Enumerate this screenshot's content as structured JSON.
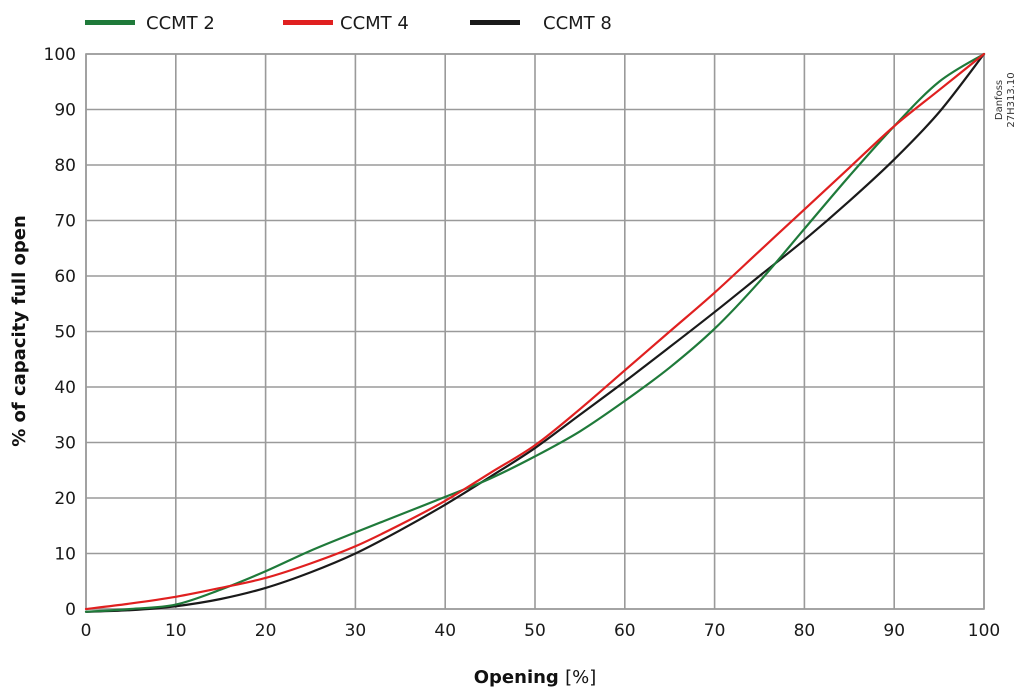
{
  "chart_data": {
    "type": "line",
    "title": "",
    "xlabel": "Opening",
    "xlabel_unit": "[%]",
    "ylabel": "% of capacity full open",
    "xlim": [
      0,
      100
    ],
    "ylim": [
      0,
      100
    ],
    "xticks": [
      "0",
      "10",
      "20",
      "30",
      "40",
      "50",
      "60",
      "70",
      "80",
      "90",
      "100"
    ],
    "yticks": [
      "0",
      "10",
      "20",
      "30",
      "40",
      "50",
      "60",
      "70",
      "80",
      "90",
      "100"
    ],
    "grid": true,
    "legend_position": "top",
    "watermark": [
      "Danfoss",
      "27H313.10"
    ],
    "series": [
      {
        "name": "CCMT 2",
        "color": "#1f7a3a",
        "x": [
          0,
          5,
          10,
          15,
          20,
          25,
          30,
          35,
          40,
          45,
          50,
          55,
          60,
          65,
          70,
          75,
          80,
          85,
          90,
          95,
          100
        ],
        "y": [
          -0.5,
          0,
          0.8,
          3.5,
          6.8,
          10.5,
          13.8,
          17,
          20.2,
          23.5,
          27.5,
          32,
          37.5,
          43.5,
          50.5,
          59,
          68.5,
          78,
          87,
          95,
          100
        ]
      },
      {
        "name": "CCMT 4",
        "color": "#e02020",
        "x": [
          0,
          5,
          10,
          15,
          20,
          25,
          30,
          35,
          40,
          45,
          50,
          55,
          60,
          65,
          70,
          75,
          80,
          85,
          90,
          95,
          100
        ],
        "y": [
          0,
          1,
          2.2,
          3.8,
          5.6,
          8.2,
          11.3,
          15.2,
          19.5,
          24.5,
          29.5,
          36,
          43,
          50,
          57,
          64.5,
          72,
          79.5,
          87,
          93.5,
          100
        ]
      },
      {
        "name": "CCMT 8",
        "color": "#1a1a1a",
        "x": [
          0,
          5,
          10,
          15,
          20,
          25,
          30,
          35,
          40,
          45,
          50,
          55,
          60,
          65,
          70,
          75,
          80,
          85,
          90,
          95,
          100
        ],
        "y": [
          -0.5,
          -0.2,
          0.5,
          1.8,
          3.8,
          6.6,
          10,
          14.2,
          18.8,
          23.8,
          29,
          35,
          41,
          47.2,
          53.5,
          60,
          66.5,
          73.5,
          81,
          89.5,
          100
        ]
      }
    ]
  }
}
